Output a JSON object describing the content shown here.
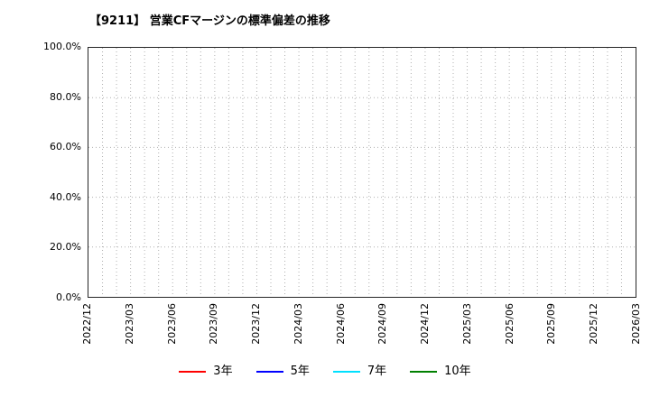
{
  "chart_data": {
    "type": "line",
    "title": "【9211】 営業CFマージンの標準偏差の推移",
    "x_tick_labels": [
      "2022/12",
      "2023/03",
      "2023/06",
      "2023/09",
      "2023/12",
      "2024/03",
      "2024/06",
      "2024/09",
      "2024/12",
      "2025/03",
      "2025/06",
      "2025/09",
      "2025/12",
      "2026/03"
    ],
    "months_between_labels": 3,
    "y_tick_labels": [
      "0.0%",
      "20.0%",
      "40.0%",
      "60.0%",
      "80.0%",
      "100.0%"
    ],
    "ylim": [
      0,
      100
    ],
    "grid": {
      "show": true,
      "style": "dotted",
      "color": "#b0b0b0",
      "vertical_frequency": "monthly"
    },
    "plot_border_color": "#262626",
    "legend_position": "bottom-center",
    "series": [
      {
        "name": "3年",
        "color": "#ff0000",
        "values": []
      },
      {
        "name": "5年",
        "color": "#0000ff",
        "values": []
      },
      {
        "name": "7年",
        "color": "#00e0ff",
        "values": []
      },
      {
        "name": "10年",
        "color": "#008000",
        "values": []
      }
    ]
  }
}
